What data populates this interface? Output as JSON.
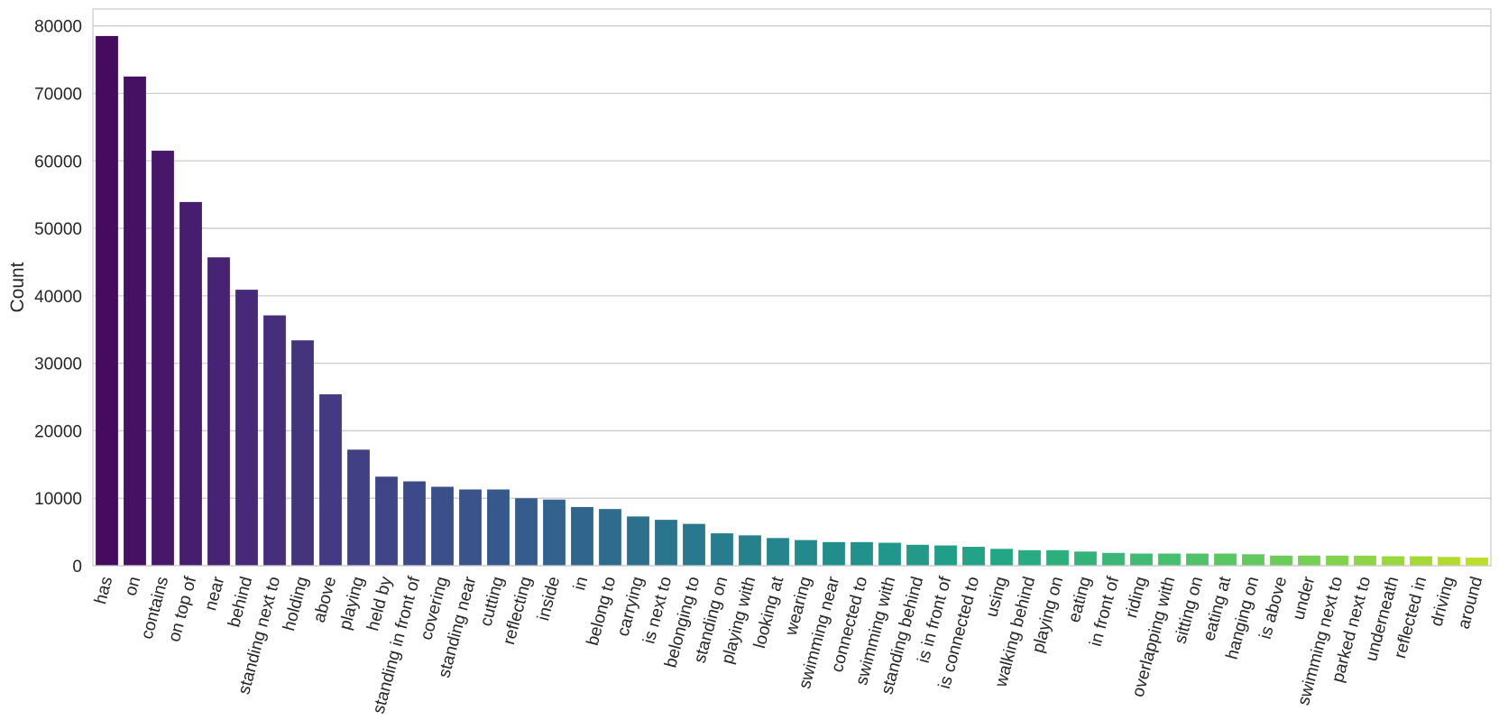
{
  "chart_data": {
    "type": "bar",
    "title": "",
    "xlabel": "",
    "ylabel": "Count",
    "ylim": [
      0,
      82500
    ],
    "yticks": [
      0,
      10000,
      20000,
      30000,
      40000,
      50000,
      60000,
      70000,
      80000
    ],
    "grid": "horizontal",
    "palette": "viridis",
    "categories": [
      "has",
      "on",
      "contains",
      "on top of",
      "near",
      "behind",
      "standing next to",
      "holding",
      "above",
      "playing",
      "held by",
      "standing in front of",
      "covering",
      "standing near",
      "cutting",
      "reflecting",
      "inside",
      "in",
      "belong to",
      "carrying",
      "is next to",
      "belonging to",
      "standing on",
      "playing with",
      "looking at",
      "wearing",
      "swimming near",
      "connected to",
      "swimming with",
      "standing behind",
      "is in front of",
      "is connected to",
      "using",
      "walking behind",
      "playing on",
      "eating",
      "in front of",
      "riding",
      "overlapping with",
      "sitting on",
      "eating at",
      "hanging on",
      "is above",
      "under",
      "swimming next to",
      "parked next to",
      "underneath",
      "reflected in",
      "driving",
      "around"
    ],
    "values": [
      78500,
      72500,
      61500,
      53900,
      45700,
      40900,
      37100,
      33400,
      25400,
      17200,
      13200,
      12500,
      11700,
      11300,
      11300,
      10000,
      9800,
      8700,
      8400,
      7300,
      6800,
      6200,
      4800,
      4500,
      4100,
      3800,
      3500,
      3500,
      3400,
      3100,
      3000,
      2800,
      2500,
      2300,
      2300,
      2100,
      1900,
      1800,
      1800,
      1800,
      1800,
      1700,
      1500,
      1500,
      1500,
      1500,
      1400,
      1400,
      1300,
      1200
    ]
  }
}
